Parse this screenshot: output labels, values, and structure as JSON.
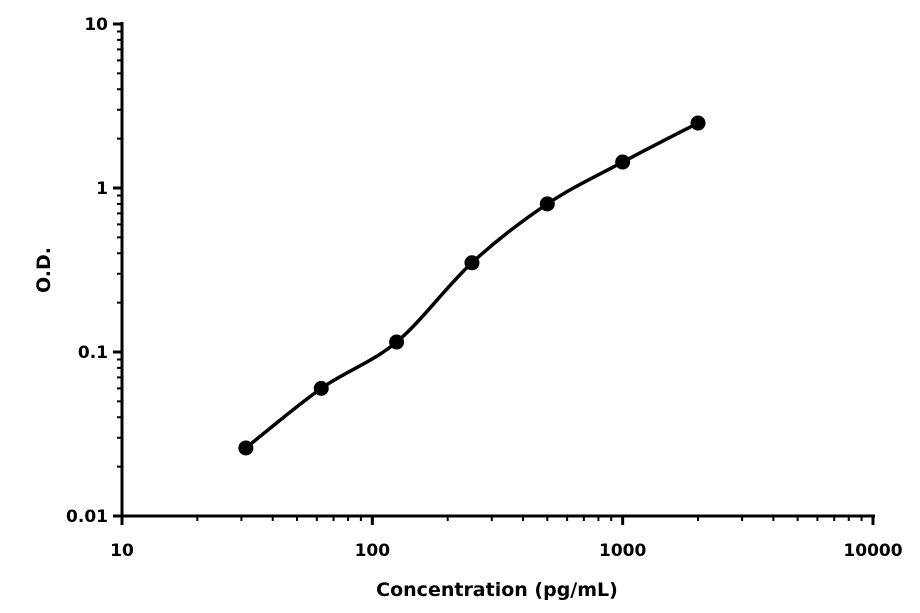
{
  "chart_data": {
    "type": "line",
    "x_label": "Concentration (pg/mL)",
    "y_label": "O.D.",
    "x": [
      31.25,
      62.5,
      125,
      250,
      500,
      1000,
      2000
    ],
    "series": [
      {
        "color": "#000000",
        "values": [
          0.026,
          0.06,
          0.115,
          0.35,
          0.8,
          1.44,
          2.49
        ]
      }
    ],
    "xlim": [
      10,
      10000
    ],
    "ylim": [
      0.01,
      10
    ],
    "xticks": [
      10,
      100,
      1000,
      10000
    ],
    "yticks": [
      0.01,
      0.1,
      1,
      10
    ],
    "xscale": "log",
    "yscale": "log",
    "smooth": true,
    "markers": true
  }
}
